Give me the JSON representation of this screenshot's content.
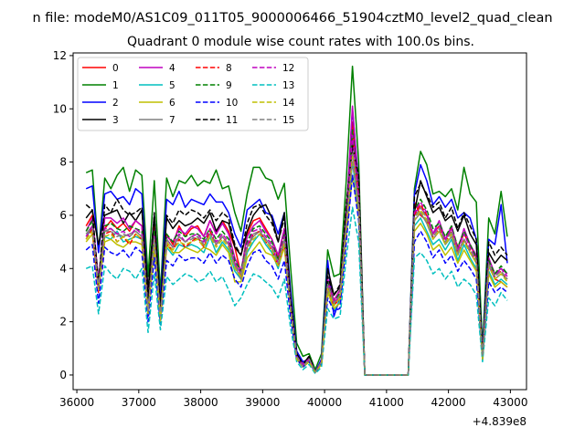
{
  "figure": {
    "suptitle": "n file: modeM0/AS1C09_011T05_9000006466_51904cztM0_level2_quad_clean",
    "title": "Quadrant 0 module wise count rates with 100.0s bins.",
    "offset_label": "+4.839e8"
  },
  "chart_data": {
    "type": "line",
    "title": "Quadrant 0 module wise count rates with 100.0s bins.",
    "xlabel": "",
    "ylabel": "",
    "x_offset": 483900000,
    "xlim": [
      35940,
      43260
    ],
    "ylim": [
      -0.55,
      12.1
    ],
    "xticks": [
      36000,
      37000,
      38000,
      39000,
      40000,
      41000,
      42000,
      43000
    ],
    "yticks": [
      0,
      2,
      4,
      6,
      8,
      10,
      12
    ],
    "grid": false,
    "legend": {
      "placement": "top-left",
      "ncol": 4
    },
    "x": [
      36150,
      36250,
      36350,
      36450,
      36550,
      36650,
      36750,
      36850,
      36950,
      37050,
      37150,
      37250,
      37350,
      37450,
      37550,
      37650,
      37750,
      37850,
      37950,
      38050,
      38150,
      38250,
      38350,
      38450,
      38550,
      38650,
      38750,
      38850,
      38950,
      39050,
      39150,
      39250,
      39350,
      39450,
      39550,
      39650,
      39750,
      39850,
      39950,
      40050,
      40150,
      40250,
      40350,
      40450,
      40550,
      40650,
      40750,
      40850,
      40950,
      41050,
      41150,
      41250,
      41350,
      41450,
      41550,
      41650,
      41750,
      41850,
      41950,
      42050,
      42150,
      42250,
      42350,
      42450,
      42550,
      42650,
      42750,
      42850,
      42950
    ],
    "series": [
      {
        "name": "0",
        "color": "#ff0000",
        "dash": "solid",
        "values": [
          5.6,
          6.0,
          3.5,
          5.5,
          5.8,
          5.5,
          5.7,
          5.4,
          5.8,
          5.6,
          2.6,
          5.6,
          2.3,
          5.3,
          4.9,
          5.6,
          5.2,
          5.5,
          5.6,
          5.2,
          5.8,
          5.3,
          5.8,
          5.4,
          4.8,
          3.8,
          5.3,
          5.8,
          5.9,
          5.5,
          5.1,
          4.4,
          5.5,
          2.8,
          0.8,
          0.4,
          0.7,
          0.1,
          0.5,
          3.6,
          2.8,
          3.2,
          6.0,
          9.5,
          6.8,
          0,
          0,
          0,
          0,
          0,
          0,
          0,
          0,
          6.5,
          6.0,
          5.8,
          5.3,
          5.6,
          5.1,
          5.5,
          4.8,
          5.3,
          4.9,
          4.4,
          0.8,
          4.2,
          3.6,
          3.5,
          3.3
        ]
      },
      {
        "name": "1",
        "color": "#008000",
        "dash": "solid",
        "values": [
          7.6,
          7.7,
          4.6,
          7.4,
          7.0,
          7.5,
          7.8,
          6.9,
          7.7,
          7.5,
          3.7,
          7.3,
          3.1,
          7.4,
          6.7,
          7.3,
          7.2,
          7.5,
          7.1,
          7.3,
          7.2,
          7.7,
          7.0,
          7.1,
          6.1,
          5.4,
          6.8,
          7.8,
          7.8,
          7.4,
          7.3,
          6.6,
          7.2,
          4.1,
          1.2,
          0.7,
          0.8,
          0.2,
          0.8,
          4.7,
          3.7,
          3.8,
          7.3,
          11.6,
          8.0,
          0,
          0,
          0,
          0,
          0,
          0,
          0,
          0,
          7.0,
          8.4,
          7.9,
          6.8,
          6.9,
          6.7,
          7.0,
          6.2,
          7.8,
          6.8,
          6.5,
          1.0,
          5.9,
          5.3,
          6.9,
          5.2
        ]
      },
      {
        "name": "2",
        "color": "#0000ff",
        "dash": "solid",
        "values": [
          7.0,
          7.1,
          4.6,
          6.8,
          6.9,
          6.6,
          6.7,
          6.4,
          7.0,
          6.8,
          3.1,
          6.0,
          2.8,
          6.6,
          6.4,
          6.9,
          6.3,
          6.6,
          6.5,
          6.4,
          6.8,
          6.5,
          6.5,
          6.1,
          5.3,
          4.8,
          6.2,
          6.4,
          6.6,
          6.1,
          6.0,
          5.3,
          6.1,
          3.2,
          0.9,
          0.5,
          0.6,
          0.1,
          0.6,
          4.3,
          2.2,
          2.9,
          5.9,
          10.0,
          7.2,
          0,
          0,
          0,
          0,
          0,
          0,
          0,
          0,
          6.8,
          7.9,
          7.3,
          6.4,
          6.7,
          6.3,
          6.6,
          5.9,
          6.1,
          5.9,
          5.1,
          0.9,
          5.1,
          4.9,
          6.4,
          4.2
        ]
      },
      {
        "name": "3",
        "color": "#000000",
        "dash": "solid",
        "values": [
          5.9,
          6.2,
          4.9,
          6.0,
          6.1,
          6.2,
          5.7,
          6.1,
          5.8,
          6.2,
          3.2,
          6.0,
          2.6,
          5.9,
          5.5,
          5.8,
          5.6,
          5.7,
          5.9,
          5.7,
          6.1,
          5.4,
          5.8,
          5.7,
          4.8,
          4.5,
          5.4,
          6.0,
          6.3,
          6.4,
          5.9,
          5.0,
          6.1,
          2.9,
          0.8,
          0.4,
          0.7,
          0.1,
          0.5,
          4.0,
          3.0,
          3.3,
          6.3,
          8.8,
          7.3,
          0,
          0,
          0,
          0,
          0,
          0,
          0,
          0,
          6.1,
          7.3,
          6.7,
          6.1,
          6.3,
          5.8,
          6.0,
          5.4,
          6.0,
          5.3,
          4.9,
          0.8,
          4.6,
          4.2,
          4.5,
          4.3
        ]
      },
      {
        "name": "4",
        "color": "#bf00bf",
        "dash": "solid",
        "values": [
          5.4,
          5.9,
          3.6,
          5.9,
          5.9,
          5.7,
          5.9,
          5.5,
          5.8,
          5.6,
          2.7,
          5.3,
          2.3,
          5.2,
          5.0,
          5.5,
          5.3,
          5.6,
          5.5,
          5.2,
          5.8,
          5.3,
          5.7,
          5.3,
          4.4,
          3.9,
          5.2,
          5.6,
          5.8,
          5.4,
          5.1,
          4.5,
          5.5,
          2.7,
          0.7,
          0.4,
          0.6,
          0.1,
          0.5,
          3.6,
          2.8,
          3.2,
          6.0,
          10.1,
          7.0,
          0,
          0,
          0,
          0,
          0,
          0,
          0,
          0,
          6.1,
          6.3,
          6.0,
          5.3,
          5.8,
          5.1,
          5.6,
          4.7,
          5.5,
          4.9,
          4.5,
          0.7,
          4.4,
          3.8,
          4.0,
          3.8
        ]
      },
      {
        "name": "5",
        "color": "#00bfbf",
        "dash": "solid",
        "values": [
          5.2,
          5.5,
          3.3,
          5.2,
          5.1,
          5.4,
          5.0,
          5.1,
          5.2,
          5.1,
          2.4,
          4.9,
          2.1,
          4.8,
          4.5,
          4.9,
          4.8,
          4.9,
          4.8,
          4.6,
          5.2,
          4.6,
          5.0,
          4.7,
          3.9,
          3.6,
          4.6,
          5.0,
          5.3,
          4.9,
          4.6,
          4.0,
          4.9,
          2.5,
          0.6,
          0.3,
          0.5,
          0.1,
          0.4,
          3.2,
          2.4,
          2.8,
          5.4,
          8.0,
          6.2,
          0,
          0,
          0,
          0,
          0,
          0,
          0,
          0,
          5.6,
          5.9,
          5.4,
          4.9,
          5.1,
          4.7,
          5.1,
          4.3,
          4.9,
          4.4,
          4.0,
          0.6,
          3.9,
          3.4,
          3.6,
          3.4
        ]
      },
      {
        "name": "6",
        "color": "#bfbf00",
        "dash": "solid",
        "values": [
          5.0,
          5.3,
          3.2,
          5.0,
          5.1,
          4.9,
          4.8,
          5.0,
          5.0,
          4.9,
          2.3,
          4.7,
          2.0,
          4.9,
          4.6,
          4.6,
          4.8,
          4.7,
          4.6,
          4.8,
          4.7,
          4.5,
          4.9,
          4.6,
          3.5,
          3.5,
          4.4,
          4.7,
          5.0,
          4.6,
          4.5,
          4.1,
          4.8,
          2.4,
          0.6,
          0.3,
          0.5,
          0.1,
          0.4,
          3.1,
          2.5,
          2.7,
          5.2,
          7.5,
          6.0,
          0,
          0,
          0,
          0,
          0,
          0,
          0,
          0,
          5.4,
          5.7,
          5.3,
          4.7,
          4.9,
          4.5,
          4.8,
          4.2,
          4.7,
          4.3,
          3.9,
          0.6,
          3.8,
          3.3,
          3.5,
          3.3
        ]
      },
      {
        "name": "7",
        "color": "#808080",
        "dash": "solid",
        "values": [
          5.3,
          5.6,
          3.4,
          5.4,
          5.5,
          5.3,
          5.2,
          5.3,
          5.4,
          5.2,
          2.5,
          5.0,
          2.2,
          5.1,
          4.8,
          5.2,
          5.0,
          5.2,
          5.1,
          5.0,
          5.3,
          4.9,
          5.2,
          4.9,
          4.1,
          3.6,
          4.8,
          5.2,
          5.4,
          5.1,
          4.8,
          4.2,
          5.1,
          2.6,
          0.7,
          0.3,
          0.6,
          0.1,
          0.5,
          3.4,
          2.6,
          3.0,
          5.6,
          8.4,
          6.4,
          0,
          0,
          0,
          0,
          0,
          0,
          0,
          0,
          5.8,
          6.1,
          5.7,
          5.1,
          5.4,
          4.9,
          5.2,
          4.5,
          5.1,
          4.6,
          4.2,
          0.7,
          4.1,
          3.6,
          3.8,
          3.6
        ]
      },
      {
        "name": "8",
        "color": "#ff0000",
        "dash": "dashed",
        "values": [
          5.1,
          5.5,
          3.1,
          5.3,
          5.4,
          5.0,
          5.2,
          4.9,
          5.3,
          5.1,
          2.2,
          5.2,
          2.1,
          4.9,
          4.7,
          5.1,
          4.8,
          5.0,
          5.2,
          4.8,
          5.4,
          4.9,
          5.2,
          4.9,
          4.2,
          3.7,
          4.8,
          5.3,
          5.4,
          5.0,
          4.7,
          4.1,
          5.0,
          2.5,
          0.7,
          0.3,
          0.6,
          0.1,
          0.4,
          3.3,
          2.6,
          2.9,
          5.6,
          9.0,
          6.6,
          0,
          0,
          0,
          0,
          0,
          0,
          0,
          0,
          6.0,
          6.4,
          6.0,
          5.2,
          5.5,
          5.0,
          5.4,
          4.6,
          5.1,
          4.7,
          4.3,
          0.7,
          4.2,
          3.7,
          3.9,
          3.6
        ]
      },
      {
        "name": "9",
        "color": "#008000",
        "dash": "dashed",
        "values": [
          5.4,
          5.8,
          3.5,
          5.6,
          5.7,
          5.5,
          5.4,
          5.6,
          5.5,
          5.4,
          2.5,
          5.4,
          2.3,
          5.3,
          5.0,
          5.4,
          5.2,
          5.3,
          5.3,
          5.1,
          5.5,
          5.1,
          5.4,
          5.1,
          4.3,
          3.9,
          5.0,
          5.5,
          5.6,
          5.3,
          5.0,
          4.3,
          5.3,
          2.7,
          0.7,
          0.4,
          0.6,
          0.1,
          0.5,
          3.5,
          2.7,
          3.1,
          5.8,
          9.2,
          6.8,
          0,
          0,
          0,
          0,
          0,
          0,
          0,
          0,
          6.2,
          6.6,
          6.2,
          5.5,
          5.7,
          5.2,
          5.6,
          4.8,
          5.4,
          4.9,
          4.4,
          0.7,
          4.3,
          3.8,
          4.1,
          3.8
        ]
      },
      {
        "name": "10",
        "color": "#0000ff",
        "dash": "dashed",
        "values": [
          4.7,
          4.9,
          2.7,
          4.8,
          4.6,
          4.5,
          4.7,
          4.4,
          4.8,
          4.6,
          2.0,
          4.4,
          1.9,
          4.3,
          4.1,
          4.5,
          4.3,
          4.4,
          4.4,
          4.2,
          4.6,
          4.2,
          4.5,
          4.3,
          3.6,
          3.3,
          4.1,
          4.6,
          4.7,
          4.3,
          4.1,
          3.6,
          4.3,
          2.2,
          0.6,
          0.3,
          0.5,
          0.1,
          0.4,
          2.9,
          2.4,
          2.5,
          5.0,
          7.5,
          5.8,
          0,
          0,
          0,
          0,
          0,
          0,
          0,
          0,
          5.0,
          5.4,
          5.0,
          4.4,
          4.7,
          4.2,
          4.5,
          3.9,
          4.3,
          4.0,
          3.6,
          0.6,
          3.5,
          3.1,
          3.3,
          3.1
        ]
      },
      {
        "name": "11",
        "color": "#000000",
        "dash": "dashed",
        "values": [
          6.4,
          6.2,
          3.4,
          6.4,
          6.1,
          6.6,
          6.2,
          6.0,
          6.1,
          6.3,
          2.9,
          6.1,
          2.4,
          6.0,
          5.7,
          6.2,
          6.0,
          6.2,
          6.1,
          5.9,
          6.2,
          5.8,
          6.1,
          5.9,
          4.9,
          4.5,
          5.7,
          6.3,
          6.4,
          6.0,
          5.7,
          5.0,
          5.9,
          2.9,
          0.8,
          0.4,
          0.7,
          0.1,
          0.5,
          3.7,
          3.0,
          3.4,
          6.4,
          8.6,
          7.5,
          0,
          0,
          0,
          0,
          0,
          0,
          0,
          0,
          6.7,
          7.2,
          6.8,
          6.3,
          6.5,
          5.9,
          6.3,
          5.5,
          6.1,
          5.6,
          5.1,
          0.8,
          5.0,
          4.5,
          4.8,
          4.5
        ]
      },
      {
        "name": "12",
        "color": "#bf00bf",
        "dash": "dashed",
        "values": [
          5.2,
          5.6,
          3.3,
          5.5,
          5.5,
          5.3,
          5.4,
          5.2,
          5.5,
          5.3,
          2.4,
          5.2,
          2.2,
          5.1,
          4.8,
          5.3,
          5.0,
          5.2,
          5.3,
          5.0,
          5.5,
          5.0,
          5.3,
          5.0,
          4.2,
          3.8,
          4.9,
          5.4,
          5.5,
          5.2,
          4.9,
          4.2,
          5.2,
          2.6,
          0.7,
          0.4,
          0.6,
          0.1,
          0.5,
          3.4,
          2.7,
          3.0,
          5.7,
          9.0,
          6.7,
          0,
          0,
          0,
          0,
          0,
          0,
          0,
          0,
          6.1,
          6.5,
          6.1,
          5.3,
          5.6,
          5.1,
          5.5,
          4.7,
          5.3,
          4.8,
          4.3,
          0.7,
          4.2,
          3.7,
          4.0,
          3.7
        ]
      },
      {
        "name": "13",
        "color": "#00bfbf",
        "dash": "dashed",
        "values": [
          4.0,
          4.1,
          2.3,
          4.1,
          3.8,
          3.6,
          4.0,
          3.9,
          3.6,
          4.0,
          1.6,
          3.8,
          1.7,
          3.7,
          3.4,
          3.6,
          3.8,
          3.7,
          3.5,
          3.6,
          3.9,
          3.5,
          3.7,
          3.2,
          2.6,
          2.9,
          3.4,
          3.8,
          3.7,
          3.5,
          3.3,
          2.9,
          3.6,
          1.8,
          0.5,
          0.2,
          0.4,
          0.05,
          0.3,
          2.5,
          2.1,
          2.2,
          4.4,
          6.3,
          5.0,
          0,
          0,
          0,
          0,
          0,
          0,
          0,
          0,
          4.4,
          4.6,
          4.3,
          3.8,
          4.0,
          3.6,
          3.9,
          3.3,
          3.6,
          3.4,
          3.0,
          0.5,
          2.9,
          2.6,
          3.1,
          2.8
        ]
      },
      {
        "name": "14",
        "color": "#bfbf00",
        "dash": "dashed",
        "values": [
          5.1,
          5.4,
          3.2,
          5.2,
          5.3,
          5.0,
          5.2,
          5.0,
          5.3,
          5.1,
          2.3,
          5.0,
          2.1,
          5.0,
          4.7,
          5.0,
          4.9,
          5.0,
          5.1,
          4.8,
          5.2,
          4.8,
          5.1,
          4.8,
          4.0,
          3.7,
          4.7,
          5.1,
          5.3,
          5.0,
          4.7,
          4.1,
          5.0,
          2.5,
          0.6,
          0.3,
          0.5,
          0.1,
          0.4,
          3.3,
          2.6,
          2.9,
          5.5,
          8.2,
          6.3,
          0,
          0,
          0,
          0,
          0,
          0,
          0,
          0,
          5.8,
          6.2,
          5.8,
          5.1,
          5.4,
          4.9,
          5.3,
          4.5,
          5.0,
          4.6,
          4.2,
          0.6,
          4.1,
          3.6,
          3.8,
          3.5
        ]
      },
      {
        "name": "15",
        "color": "#808080",
        "dash": "dashed",
        "values": [
          5.3,
          5.5,
          3.3,
          5.4,
          5.4,
          5.2,
          5.3,
          5.2,
          5.4,
          5.2,
          2.4,
          5.1,
          2.2,
          5.1,
          4.8,
          5.2,
          5.0,
          5.1,
          5.2,
          4.9,
          5.3,
          4.9,
          5.2,
          4.9,
          4.1,
          3.8,
          4.8,
          5.3,
          5.4,
          5.1,
          4.8,
          4.2,
          5.1,
          2.6,
          0.7,
          0.3,
          0.6,
          0.1,
          0.5,
          3.4,
          2.7,
          3.0,
          5.6,
          8.0,
          6.4,
          0,
          0,
          0,
          0,
          0,
          0,
          0,
          0,
          5.9,
          6.3,
          5.9,
          5.2,
          5.5,
          5.0,
          5.4,
          4.6,
          5.1,
          4.7,
          4.3,
          0.7,
          4.2,
          3.7,
          3.9,
          3.6
        ]
      }
    ]
  }
}
